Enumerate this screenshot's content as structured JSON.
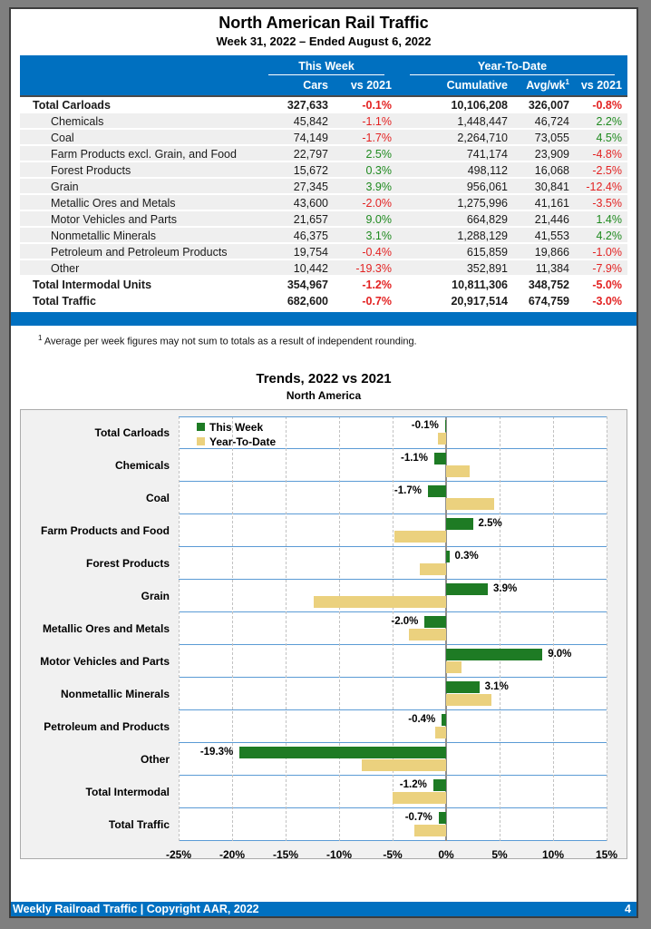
{
  "header": {
    "title": "North American Rail Traffic",
    "subtitle": "Week 31, 2022 – Ended August 6, 2022"
  },
  "table": {
    "group_this_week": "This Week",
    "group_ytd": "Year-To-Date",
    "columns": {
      "cars": "Cars",
      "vs2021_week": "vs 2021",
      "cumulative": "Cumulative",
      "avgwk": "Avg/wk",
      "avgwk_sup": "1",
      "vs2021_ytd": "vs 2021"
    },
    "rows": [
      {
        "label": "Total Carloads",
        "total": true,
        "cars": "327,633",
        "vs_tw": "-0.1%",
        "cumulative": "10,106,208",
        "avgwk": "326,007",
        "vs_ytd": "-0.8%"
      },
      {
        "label": "Chemicals",
        "total": false,
        "cars": "45,842",
        "vs_tw": "-1.1%",
        "cumulative": "1,448,447",
        "avgwk": "46,724",
        "vs_ytd": "2.2%"
      },
      {
        "label": "Coal",
        "total": false,
        "cars": "74,149",
        "vs_tw": "-1.7%",
        "cumulative": "2,264,710",
        "avgwk": "73,055",
        "vs_ytd": "4.5%"
      },
      {
        "label": "Farm Products excl. Grain, and Food",
        "total": false,
        "cars": "22,797",
        "vs_tw": "2.5%",
        "cumulative": "741,174",
        "avgwk": "23,909",
        "vs_ytd": "-4.8%"
      },
      {
        "label": "Forest Products",
        "total": false,
        "cars": "15,672",
        "vs_tw": "0.3%",
        "cumulative": "498,112",
        "avgwk": "16,068",
        "vs_ytd": "-2.5%"
      },
      {
        "label": "Grain",
        "total": false,
        "cars": "27,345",
        "vs_tw": "3.9%",
        "cumulative": "956,061",
        "avgwk": "30,841",
        "vs_ytd": "-12.4%"
      },
      {
        "label": "Metallic Ores and Metals",
        "total": false,
        "cars": "43,600",
        "vs_tw": "-2.0%",
        "cumulative": "1,275,996",
        "avgwk": "41,161",
        "vs_ytd": "-3.5%"
      },
      {
        "label": "Motor Vehicles and Parts",
        "total": false,
        "cars": "21,657",
        "vs_tw": "9.0%",
        "cumulative": "664,829",
        "avgwk": "21,446",
        "vs_ytd": "1.4%"
      },
      {
        "label": "Nonmetallic Minerals",
        "total": false,
        "cars": "46,375",
        "vs_tw": "3.1%",
        "cumulative": "1,288,129",
        "avgwk": "41,553",
        "vs_ytd": "4.2%"
      },
      {
        "label": "Petroleum and Petroleum Products",
        "total": false,
        "cars": "19,754",
        "vs_tw": "-0.4%",
        "cumulative": "615,859",
        "avgwk": "19,866",
        "vs_ytd": "-1.0%"
      },
      {
        "label": "Other",
        "total": false,
        "cars": "10,442",
        "vs_tw": "-19.3%",
        "cumulative": "352,891",
        "avgwk": "11,384",
        "vs_ytd": "-7.9%"
      },
      {
        "label": "Total Intermodal Units",
        "total": true,
        "cars": "354,967",
        "vs_tw": "-1.2%",
        "cumulative": "10,811,306",
        "avgwk": "348,752",
        "vs_ytd": "-5.0%"
      },
      {
        "label": "Total Traffic",
        "total": true,
        "cars": "682,600",
        "vs_tw": "-0.7%",
        "cumulative": "20,917,514",
        "avgwk": "674,759",
        "vs_ytd": "-3.0%"
      }
    ]
  },
  "footnote": {
    "sup": "1",
    "text": "Average per week figures may not sum to totals as a result of independent rounding."
  },
  "chart": {
    "title": "Trends, 2022 vs 2021",
    "subtitle": "North America",
    "legend": [
      {
        "label": "This Week",
        "color": "#1E7B24"
      },
      {
        "label": "Year-To-Date",
        "color": "#EBD17E"
      }
    ]
  },
  "chart_data": {
    "type": "bar",
    "orientation": "horizontal",
    "title": "Trends, 2022 vs 2021",
    "subtitle": "North America",
    "xlim": [
      -25,
      15
    ],
    "xtick_values": [
      -25,
      -20,
      -15,
      -10,
      -5,
      0,
      5,
      10,
      15
    ],
    "xtick_labels": [
      "-25%",
      "-20%",
      "-15%",
      "-10%",
      "-5%",
      "0%",
      "5%",
      "10%",
      "15%"
    ],
    "grid": "vertical-dashed",
    "legend_position": "top-left-inside",
    "categories": [
      "Total Carloads",
      "Chemicals",
      "Coal",
      "Farm Products and Food",
      "Forest Products",
      "Grain",
      "Metallic Ores and Metals",
      "Motor Vehicles and Parts",
      "Nonmetallic Minerals",
      "Petroleum and Products",
      "Other",
      "Total Intermodal",
      "Total Traffic"
    ],
    "series": [
      {
        "name": "This Week",
        "color": "#1E7B24",
        "values": [
          -0.1,
          -1.1,
          -1.7,
          2.5,
          0.3,
          3.9,
          -2.0,
          9.0,
          3.1,
          -0.4,
          -19.3,
          -1.2,
          -0.7
        ],
        "labels": [
          "-0.1%",
          "-1.1%",
          "-1.7%",
          "2.5%",
          "0.3%",
          "3.9%",
          "-2.0%",
          "9.0%",
          "3.1%",
          "-0.4%",
          "-19.3%",
          "-1.2%",
          "-0.7%"
        ]
      },
      {
        "name": "Year-To-Date",
        "color": "#EBD17E",
        "values": [
          -0.8,
          2.2,
          4.5,
          -4.8,
          -2.5,
          -12.4,
          -3.5,
          1.4,
          4.2,
          -1.0,
          -7.9,
          -5.0,
          -3.0
        ]
      }
    ]
  },
  "footer": {
    "left": "Weekly Railroad Traffic | Copyright AAR, 2022",
    "page_number": "4"
  },
  "colors": {
    "accent_blue": "#0070C0",
    "row_separator_blue": "#5B9BD5",
    "bar_green": "#1E7B24",
    "bar_yellow": "#EBD17E",
    "negative_red": "#e32222",
    "positive_green": "#1f8a1f",
    "row_gray": "#EFEFEF",
    "chart_bg": "#F1F1F1"
  }
}
